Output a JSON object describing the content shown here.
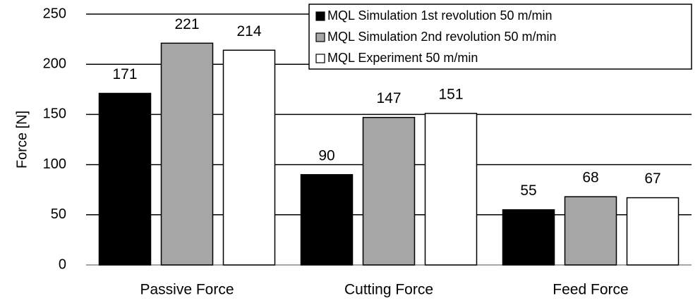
{
  "chart_data": {
    "type": "bar",
    "y_label": "Force [N]",
    "categories": [
      "Passive Force",
      "Cutting Force",
      "Feed Force"
    ],
    "series": [
      {
        "name": "MQL Simulation 1st revolution 50 m/min",
        "color": "#000000",
        "values": [
          171,
          90,
          55
        ]
      },
      {
        "name": "MQL Simulation 2nd revolution 50 m/min",
        "color": "#a6a6a6",
        "values": [
          221,
          147,
          68
        ]
      },
      {
        "name": "MQL Experiment 50 m/min",
        "color": "#ffffff",
        "values": [
          214,
          151,
          67
        ]
      }
    ],
    "ylim": [
      0,
      250
    ],
    "yticks": [
      0,
      50,
      100,
      150,
      200,
      250
    ],
    "grid": true,
    "legend": "upper right"
  }
}
